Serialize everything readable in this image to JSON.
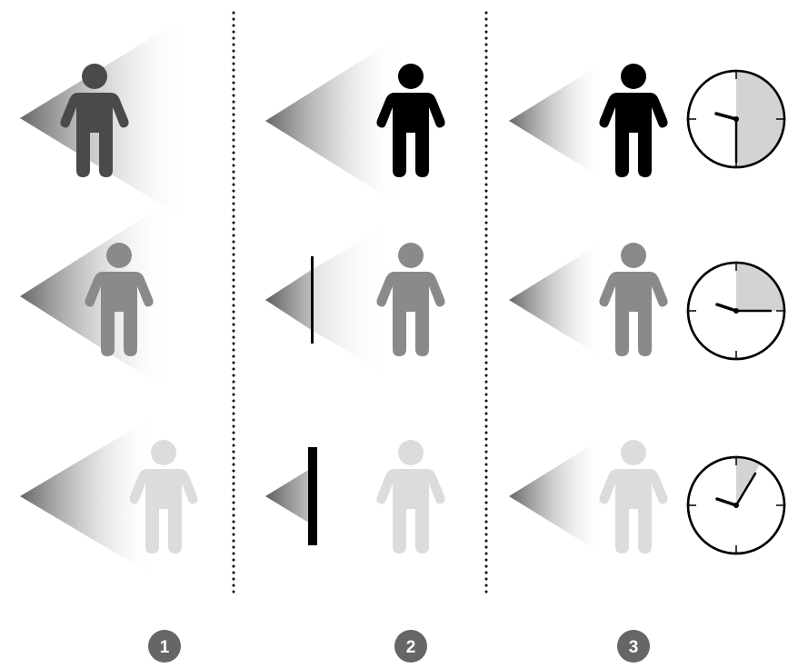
{
  "columns": [
    {
      "badge": "1",
      "rows": [
        {
          "person_shade": "#4a4a4a",
          "beam": "long"
        },
        {
          "person_shade": "#8a8a8a",
          "beam": "long"
        },
        {
          "person_shade": "#dcdcdc",
          "beam": "long"
        }
      ]
    },
    {
      "badge": "2",
      "rows": [
        {
          "person_shade": "#000000",
          "barrier": "none"
        },
        {
          "person_shade": "#8a8a8a",
          "barrier": "thin"
        },
        {
          "person_shade": "#dcdcdc",
          "barrier": "thick"
        }
      ]
    },
    {
      "badge": "3",
      "rows": [
        {
          "person_shade": "#000000",
          "clock_shaded_fraction": 0.5
        },
        {
          "person_shade": "#8a8a8a",
          "clock_shaded_fraction": 0.25
        },
        {
          "person_shade": "#dcdcdc",
          "clock_shaded_fraction": 0.083
        }
      ]
    }
  ],
  "colors": {
    "badge_fill": "#666666",
    "separator": "#111111",
    "clock_fill": "#d3d3d3"
  },
  "icons": [
    "light-cone-icon",
    "person-icon",
    "barrier-icon",
    "clock-icon",
    "number-badge-icon"
  ]
}
